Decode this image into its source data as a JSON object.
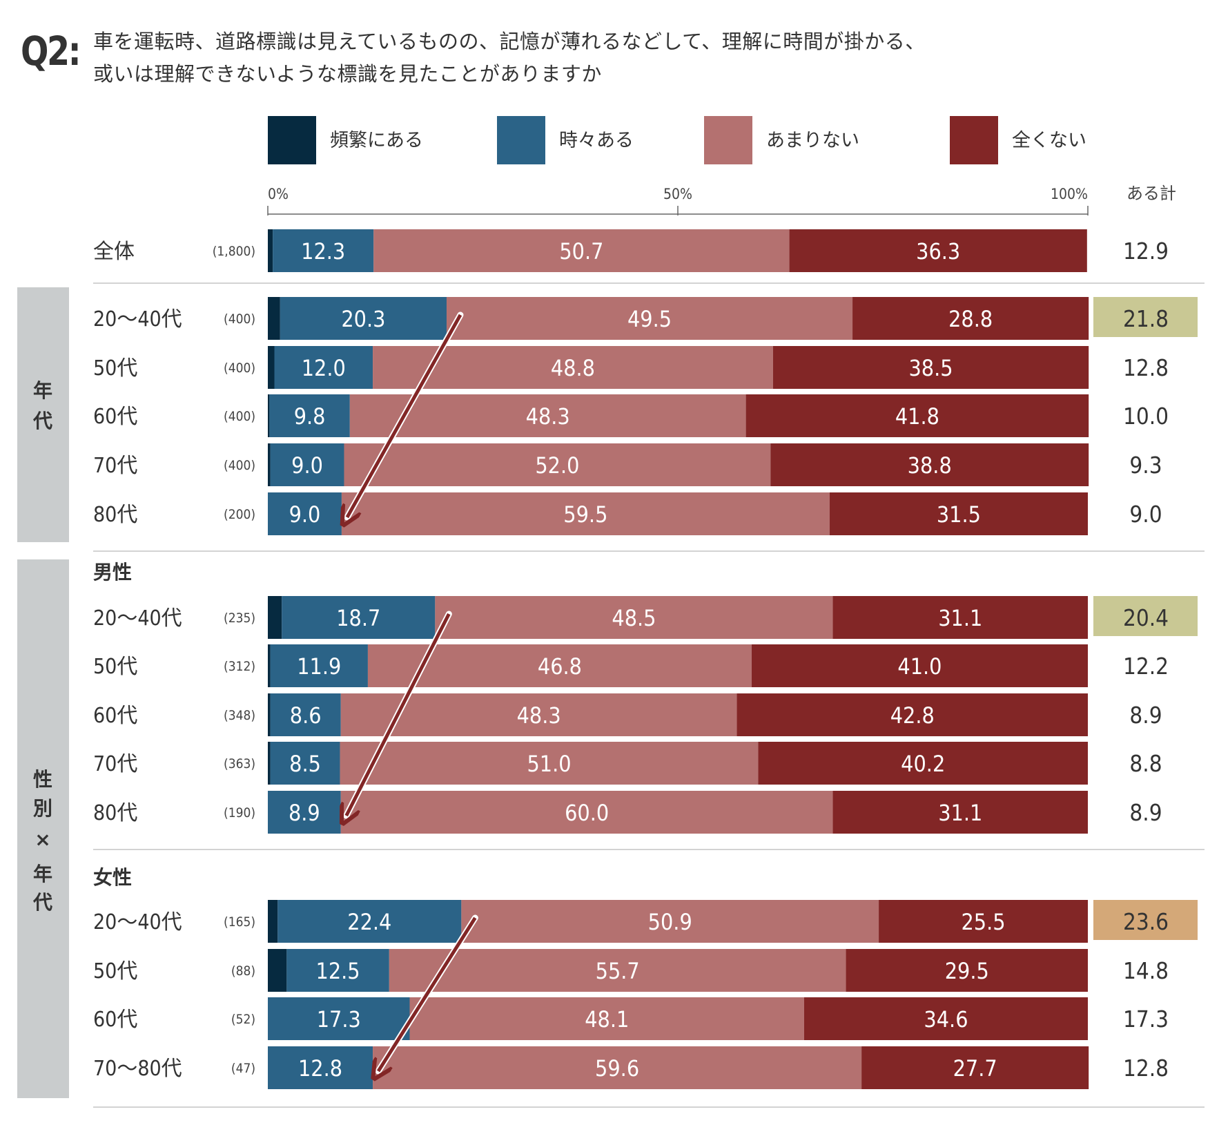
{
  "question": {
    "label": "Q2:",
    "line1": "車を運転時、道路標識は見えているものの、記憶が薄れるなどして、理解に時間が掛かる、",
    "line2": "或いは理解できないような標識を見たことがありますか"
  },
  "legend": [
    {
      "label": "頻繁にある",
      "color": "#062a40"
    },
    {
      "label": "時々ある",
      "color": "#2b6387"
    },
    {
      "label": "あまりない",
      "color": "#b47170"
    },
    {
      "label": "全くない",
      "color": "#822626"
    }
  ],
  "axis": {
    "ticks": [
      "0%",
      "50%",
      "100%"
    ],
    "total_header": "ある計"
  },
  "groups": [
    {
      "side_label": "",
      "sub_label": ""
    },
    {
      "side_label": "年代",
      "sub_label": ""
    },
    {
      "side_label": "性別×年代",
      "sub_label": "男性"
    },
    {
      "side_label": "",
      "sub_label": "女性"
    }
  ],
  "highlight_colors": {
    "olive": "#c9c894",
    "orange": "#d4a878"
  },
  "arrow_color": "#822626",
  "chart_data": {
    "type": "bar",
    "orientation": "horizontal",
    "stacked": true,
    "xlim": [
      0,
      100
    ],
    "series_names": [
      "頻繁にある",
      "時々ある",
      "あまりない",
      "全くない"
    ],
    "total_label": "ある計",
    "rows": [
      {
        "group": 0,
        "label": "全体",
        "n": "(1,800)",
        "values": [
          0.6,
          12.3,
          50.7,
          36.3
        ],
        "total": "12.9",
        "highlight": ""
      },
      {
        "group": 1,
        "label": "20～40代",
        "n": "(400)",
        "values": [
          1.5,
          20.3,
          49.5,
          28.8
        ],
        "total": "21.8",
        "highlight": "olive"
      },
      {
        "group": 1,
        "label": "50代",
        "n": "(400)",
        "values": [
          0.8,
          12.0,
          48.8,
          38.5
        ],
        "total": "12.8",
        "highlight": ""
      },
      {
        "group": 1,
        "label": "60代",
        "n": "(400)",
        "values": [
          0.2,
          9.8,
          48.3,
          41.8
        ],
        "total": "10.0",
        "highlight": ""
      },
      {
        "group": 1,
        "label": "70代",
        "n": "(400)",
        "values": [
          0.3,
          9.0,
          52.0,
          38.8
        ],
        "total": "9.3",
        "highlight": ""
      },
      {
        "group": 1,
        "label": "80代",
        "n": "(200)",
        "values": [
          0.0,
          9.0,
          59.5,
          31.5
        ],
        "total": "9.0",
        "highlight": ""
      },
      {
        "group": 2,
        "label": "20～40代",
        "n": "(235)",
        "values": [
          1.7,
          18.7,
          48.5,
          31.1
        ],
        "total": "20.4",
        "highlight": "olive"
      },
      {
        "group": 2,
        "label": "50代",
        "n": "(312)",
        "values": [
          0.3,
          11.9,
          46.8,
          41.0
        ],
        "total": "12.2",
        "highlight": ""
      },
      {
        "group": 2,
        "label": "60代",
        "n": "(348)",
        "values": [
          0.3,
          8.6,
          48.3,
          42.8
        ],
        "total": "8.9",
        "highlight": ""
      },
      {
        "group": 2,
        "label": "70代",
        "n": "(363)",
        "values": [
          0.3,
          8.5,
          51.0,
          40.2
        ],
        "total": "8.8",
        "highlight": ""
      },
      {
        "group": 2,
        "label": "80代",
        "n": "(190)",
        "values": [
          0.0,
          8.9,
          60.0,
          31.1
        ],
        "total": "8.9",
        "highlight": ""
      },
      {
        "group": 3,
        "label": "20～40代",
        "n": "(165)",
        "values": [
          1.2,
          22.4,
          50.9,
          25.5
        ],
        "total": "23.6",
        "highlight": "orange"
      },
      {
        "group": 3,
        "label": "50代",
        "n": "(88)",
        "values": [
          2.3,
          12.5,
          55.7,
          29.5
        ],
        "total": "14.8",
        "highlight": ""
      },
      {
        "group": 3,
        "label": "60代",
        "n": "(52)",
        "values": [
          0.0,
          17.3,
          48.1,
          34.6
        ],
        "total": "17.3",
        "highlight": ""
      },
      {
        "group": 3,
        "label": "70～80代",
        "n": "(47)",
        "values": [
          0.0,
          12.8,
          59.6,
          27.7
        ],
        "total": "12.8",
        "highlight": ""
      }
    ],
    "trend_arrows": [
      {
        "from_row": 1,
        "to_row": 5
      },
      {
        "from_row": 6,
        "to_row": 10
      },
      {
        "from_row": 11,
        "to_row": 14
      }
    ]
  }
}
